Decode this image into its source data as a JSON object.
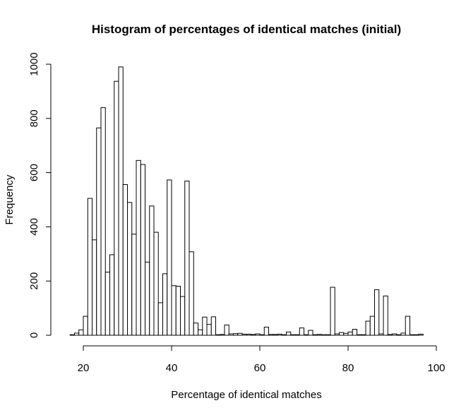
{
  "chart_data": {
    "type": "bar",
    "title": "Histogram of percentages of identical matches (initial)",
    "xlabel": "Percentage of identical matches",
    "ylabel": "Frequency",
    "xlim": [
      16.5,
      97.5
    ],
    "ylim": [
      0,
      1000
    ],
    "x_ticks": [
      20,
      40,
      60,
      80,
      100
    ],
    "y_ticks": [
      0,
      200,
      400,
      600,
      800,
      1000
    ],
    "x_tick_labels": [
      "20",
      "40",
      "60",
      "80",
      "100"
    ],
    "y_tick_labels": [
      "0",
      "200",
      "400",
      "600",
      "800",
      "1000"
    ],
    "bin_width": 1,
    "bin_start": 17,
    "values": [
      2,
      8,
      20,
      70,
      505,
      352,
      765,
      840,
      233,
      297,
      937,
      990,
      556,
      490,
      373,
      645,
      630,
      270,
      477,
      380,
      120,
      227,
      573,
      183,
      181,
      143,
      569,
      308,
      45,
      20,
      67,
      40,
      68,
      2,
      3,
      38,
      5,
      6,
      7,
      4,
      4,
      3,
      5,
      2,
      30,
      3,
      3,
      4,
      2,
      12,
      2,
      2,
      27,
      2,
      18,
      2,
      3,
      2,
      2,
      177,
      5,
      10,
      7,
      12,
      22,
      2,
      2,
      52,
      70,
      168,
      5,
      145,
      3,
      5,
      2,
      8,
      70,
      2,
      2,
      4
    ],
    "grid": false,
    "colors": {
      "bar_fill": "#ffffff",
      "bar_stroke": "#000000",
      "axis": "#000000",
      "text": "#000000"
    }
  }
}
